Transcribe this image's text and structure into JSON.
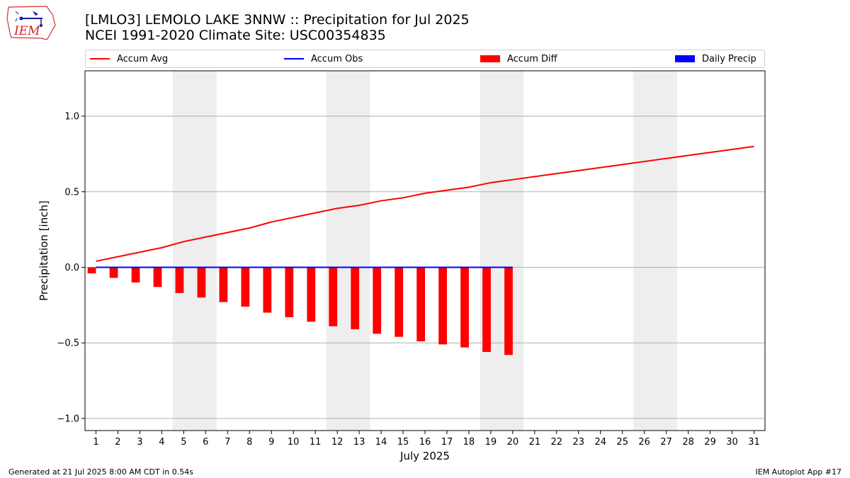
{
  "header": {
    "title_line1": "[LMLO3] LEMOLO LAKE  3NNW :: Precipitation for Jul 2025",
    "title_line2": "NCEI 1991-2020 Climate Site: USC00354835",
    "logo_text": "IEM"
  },
  "footer": {
    "generated": "Generated at 21 Jul 2025 8:00 AM CDT in 0.54s",
    "app": "IEM Autoplot App #17"
  },
  "colors": {
    "accum_avg": "#ff0000",
    "accum_obs": "#0000ff",
    "accum_diff": "#ff0000",
    "daily_precip": "#0000ff",
    "weekend_shade": "#eeeeee",
    "grid": "#b0b0b0"
  },
  "chart_data": {
    "type": "bar",
    "xlabel": "July 2025",
    "ylabel": "Precipitation [inch]",
    "xlim": [
      0.5,
      31.5
    ],
    "ylim": [
      -1.08,
      1.3
    ],
    "y_ticks": [
      -1.0,
      -0.5,
      0.0,
      0.5,
      1.0
    ],
    "y_tick_labels": [
      "−1.0",
      "−0.5",
      "0.0",
      "0.5",
      "1.0"
    ],
    "x_ticks": [
      1,
      2,
      3,
      4,
      5,
      6,
      7,
      8,
      9,
      10,
      11,
      12,
      13,
      14,
      15,
      16,
      17,
      18,
      19,
      20,
      21,
      22,
      23,
      24,
      25,
      26,
      27,
      28,
      29,
      30,
      31
    ],
    "grid": "horizontal",
    "legend_position": "top",
    "weekend_spans": [
      [
        5,
        6
      ],
      [
        12,
        13
      ],
      [
        19,
        20
      ],
      [
        26,
        27
      ]
    ],
    "series": [
      {
        "name": "Accum Avg",
        "kind": "line",
        "x": [
          1,
          2,
          3,
          4,
          5,
          6,
          7,
          8,
          9,
          10,
          11,
          12,
          13,
          14,
          15,
          16,
          17,
          18,
          19,
          20,
          21,
          22,
          23,
          24,
          25,
          26,
          27,
          28,
          29,
          30,
          31
        ],
        "values": [
          0.04,
          0.07,
          0.1,
          0.13,
          0.17,
          0.2,
          0.23,
          0.26,
          0.3,
          0.33,
          0.36,
          0.39,
          0.41,
          0.44,
          0.46,
          0.49,
          0.51,
          0.53,
          0.56,
          0.58,
          0.6,
          0.62,
          0.64,
          0.66,
          0.68,
          0.7,
          0.72,
          0.74,
          0.76,
          0.78,
          0.8
        ]
      },
      {
        "name": "Accum Obs",
        "kind": "line",
        "x": [
          1,
          2,
          3,
          4,
          5,
          6,
          7,
          8,
          9,
          10,
          11,
          12,
          13,
          14,
          15,
          16,
          17,
          18,
          19,
          20
        ],
        "values": [
          0,
          0,
          0,
          0,
          0,
          0,
          0,
          0,
          0,
          0,
          0,
          0,
          0,
          0,
          0,
          0,
          0,
          0,
          0,
          0
        ]
      },
      {
        "name": "Accum Diff",
        "kind": "bar",
        "x": [
          1,
          2,
          3,
          4,
          5,
          6,
          7,
          8,
          9,
          10,
          11,
          12,
          13,
          14,
          15,
          16,
          17,
          18,
          19,
          20
        ],
        "values": [
          -0.04,
          -0.07,
          -0.1,
          -0.13,
          -0.17,
          -0.2,
          -0.23,
          -0.26,
          -0.3,
          -0.33,
          -0.36,
          -0.39,
          -0.41,
          -0.44,
          -0.46,
          -0.49,
          -0.51,
          -0.53,
          -0.56,
          -0.58
        ]
      },
      {
        "name": "Daily Precip",
        "kind": "bar",
        "x": [
          1,
          2,
          3,
          4,
          5,
          6,
          7,
          8,
          9,
          10,
          11,
          12,
          13,
          14,
          15,
          16,
          17,
          18,
          19,
          20
        ],
        "values": [
          0,
          0,
          0,
          0,
          0,
          0,
          0,
          0,
          0,
          0,
          0,
          0,
          0,
          0,
          0,
          0,
          0,
          0,
          0,
          0
        ]
      }
    ]
  }
}
